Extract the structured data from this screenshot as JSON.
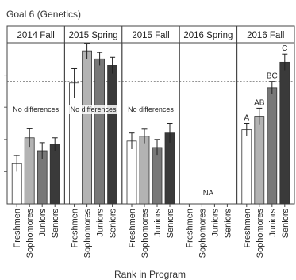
{
  "chart_data": {
    "type": "bar",
    "title": "Goal 6 (Genetics)",
    "xlabel": "Rank in Program",
    "ylabel": "",
    "ylim": [
      0,
      5
    ],
    "reference_line": 3.8,
    "categories": [
      "Freshmen",
      "Sophomores",
      "Juniors",
      "Seniors"
    ],
    "category_colors": [
      "#ffffff",
      "#b3b3b3",
      "#787878",
      "#3a3a3a"
    ],
    "panels": [
      {
        "label": "2014 Fall",
        "values": [
          1.25,
          2.05,
          1.65,
          1.85
        ],
        "errors": [
          0.25,
          0.28,
          0.25,
          0.2
        ],
        "note": "No differences",
        "letters": [
          "",
          "",
          "",
          ""
        ]
      },
      {
        "label": "2015 Spring",
        "values": [
          3.75,
          4.75,
          4.5,
          4.3
        ],
        "errors": [
          0.45,
          0.25,
          0.2,
          0.25
        ],
        "note": "No differences",
        "letters": [
          "",
          "",
          "",
          ""
        ]
      },
      {
        "label": "2015 Fall",
        "values": [
          1.95,
          2.1,
          1.75,
          2.2
        ],
        "errors": [
          0.25,
          0.22,
          0.25,
          0.3
        ],
        "note": "No differences",
        "letters": [
          "",
          "",
          "",
          ""
        ]
      },
      {
        "label": "2016 Spring",
        "values": [
          null,
          null,
          null,
          null
        ],
        "errors": [
          0,
          0,
          0,
          0
        ],
        "note": "NA",
        "letters": [
          "",
          "",
          "",
          ""
        ]
      },
      {
        "label": "2016 Fall",
        "values": [
          2.3,
          2.72,
          3.6,
          4.4
        ],
        "errors": [
          0.2,
          0.25,
          0.2,
          0.25
        ],
        "note": "",
        "letters": [
          "A",
          "AB",
          "BC",
          "C"
        ]
      }
    ]
  }
}
